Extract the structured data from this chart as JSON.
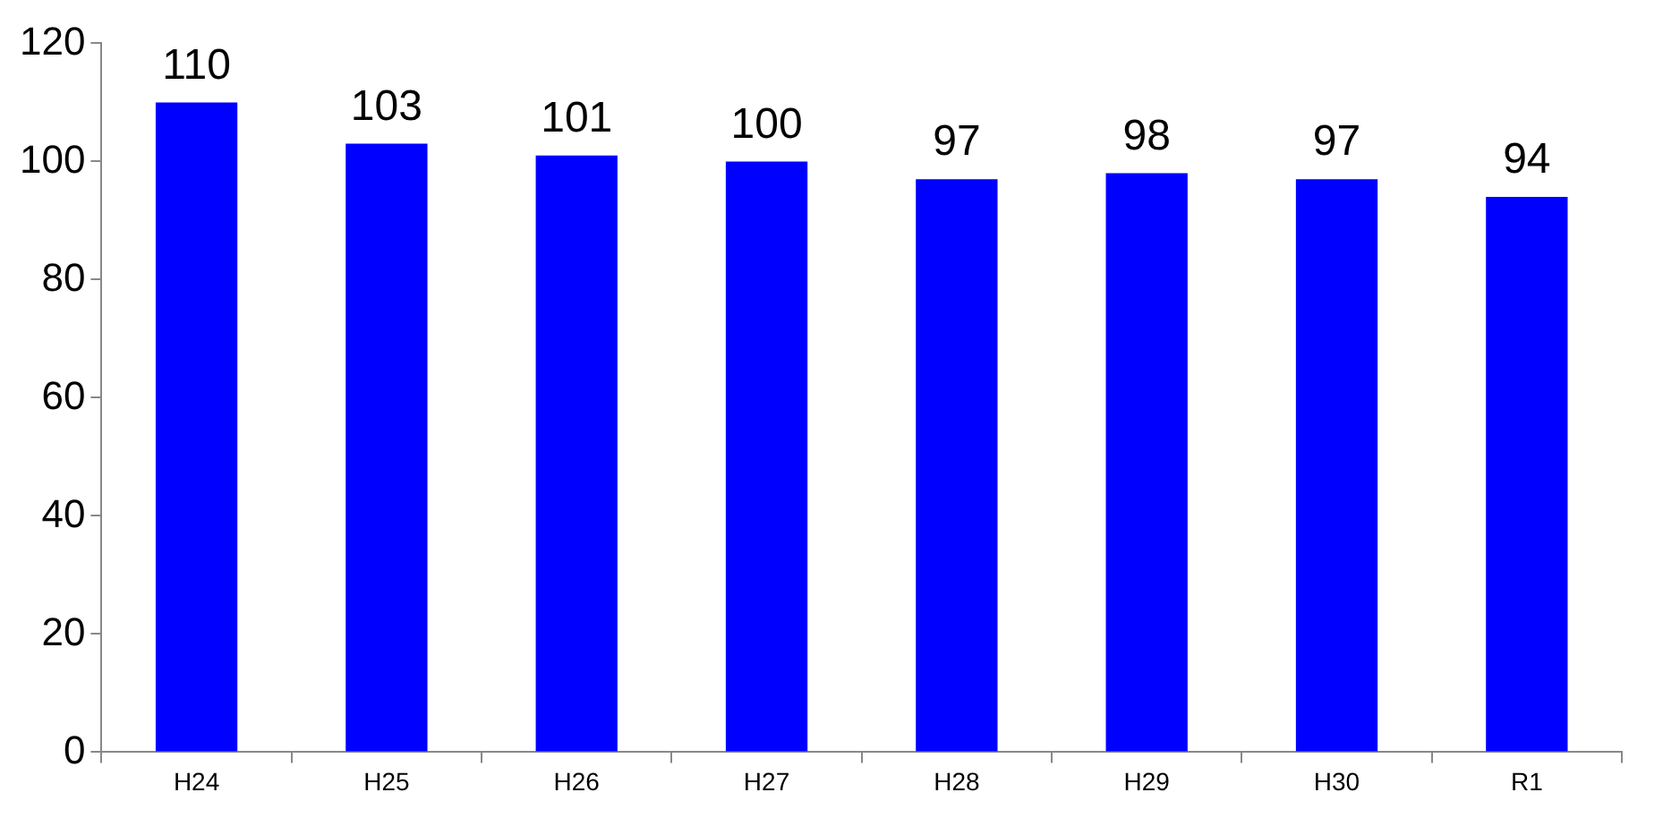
{
  "chart_data": {
    "type": "bar",
    "categories": [
      "H24",
      "H25",
      "H26",
      "H27",
      "H28",
      "H29",
      "H30",
      "R1"
    ],
    "values": [
      110,
      103,
      101,
      100,
      97,
      98,
      97,
      94
    ],
    "color": "#0000ff",
    "ylim": [
      0,
      120
    ],
    "yticks": [
      0,
      20,
      40,
      60,
      80,
      100,
      120
    ],
    "data_labels": true,
    "grid": false,
    "legend": false
  }
}
